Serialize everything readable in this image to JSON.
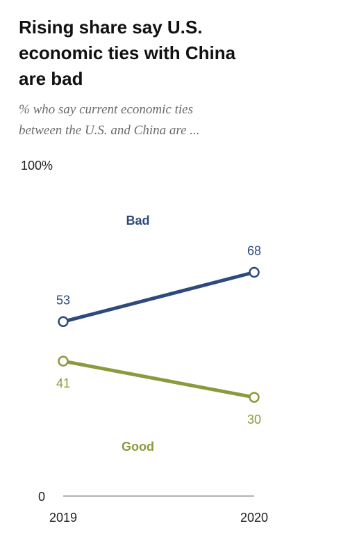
{
  "header": {
    "title_lines": [
      "Rising share say U.S.",
      "economic ties with China",
      "are bad"
    ],
    "subtitle_lines": [
      "% who say current economic ties",
      "between the U.S. and China are ..."
    ]
  },
  "chart_data": {
    "type": "line",
    "title": "Rising share say U.S. economic ties with China are bad",
    "subtitle": "% who say current economic ties between the U.S. and China are ...",
    "categories": [
      "2019",
      "2020"
    ],
    "ylim": [
      0,
      100
    ],
    "y_tick_labels": [
      "100%",
      "0"
    ],
    "grid": false,
    "legend": "inline",
    "series": [
      {
        "name": "Bad",
        "values": [
          53,
          68
        ],
        "value_labels": [
          "53",
          "68"
        ],
        "color": "#2e4a7d",
        "label_color": "#2e4a7d",
        "name_position": "above"
      },
      {
        "name": "Good",
        "values": [
          41,
          30
        ],
        "value_labels": [
          "41",
          "30"
        ],
        "color": "#8a9a3c",
        "label_color": "#8a9a3c",
        "name_position": "below"
      }
    ]
  }
}
